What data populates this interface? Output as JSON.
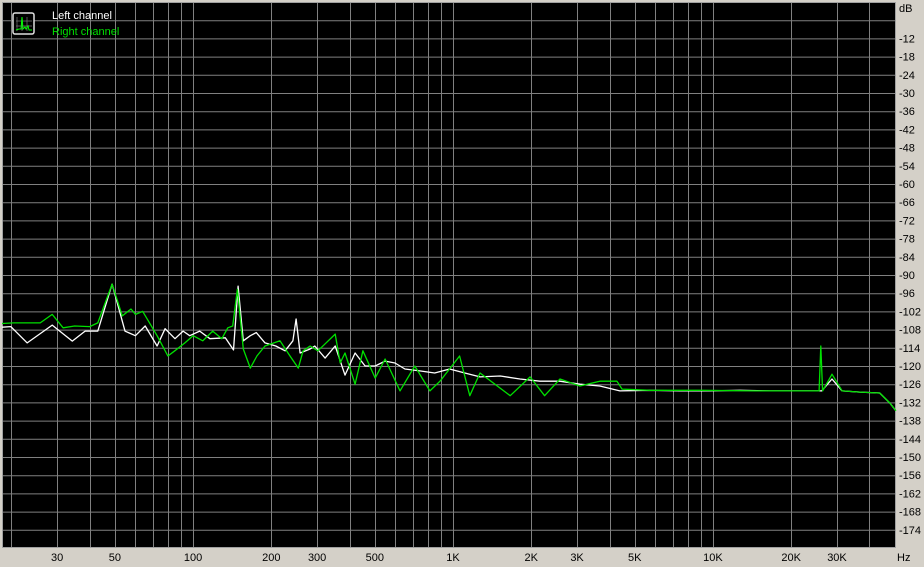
{
  "chart_data": {
    "type": "line",
    "title": "",
    "xlabel": "Hz",
    "ylabel": "dB",
    "xscale": "log",
    "xlim": [
      18.4,
      50600
    ],
    "ylim": [
      -180,
      0
    ],
    "grid": true,
    "legend_position": "top-left",
    "background": "#000000",
    "grid_color": "#808080",
    "x_ticks": [
      {
        "value": 30,
        "label": "30"
      },
      {
        "value": 50,
        "label": "50"
      },
      {
        "value": 100,
        "label": "100"
      },
      {
        "value": 200,
        "label": "200"
      },
      {
        "value": 300,
        "label": "300"
      },
      {
        "value": 500,
        "label": "500"
      },
      {
        "value": 1000,
        "label": "1K"
      },
      {
        "value": 2000,
        "label": "2K"
      },
      {
        "value": 3000,
        "label": "3K"
      },
      {
        "value": 5000,
        "label": "5K"
      },
      {
        "value": 10000,
        "label": "10K"
      },
      {
        "value": 20000,
        "label": "20K"
      },
      {
        "value": 30000,
        "label": "30K"
      }
    ],
    "y_ticks": [
      -12,
      -18,
      -24,
      -30,
      -36,
      -42,
      -48,
      -54,
      -60,
      -66,
      -72,
      -78,
      -84,
      -90,
      -96,
      -102,
      -108,
      -114,
      -120,
      -126,
      -132,
      -138,
      -144,
      -150,
      -156,
      -162,
      -168,
      -174
    ],
    "series": [
      {
        "name": "Left channel",
        "color": "#ffffff",
        "points": [
          [
            18.4,
            -107.2
          ],
          [
            19.9,
            -107
          ],
          [
            23,
            -112.4
          ],
          [
            28.7,
            -106.5
          ],
          [
            34.3,
            -111.8
          ],
          [
            38.4,
            -108.5
          ],
          [
            43,
            -108.5
          ],
          [
            48.8,
            -93
          ],
          [
            54.7,
            -108.5
          ],
          [
            60,
            -110
          ],
          [
            65.4,
            -106.8
          ],
          [
            72.7,
            -113.4
          ],
          [
            78,
            -107.7
          ],
          [
            85.2,
            -111
          ],
          [
            91.5,
            -108.5
          ],
          [
            97,
            -110
          ],
          [
            106,
            -108.5
          ],
          [
            116,
            -111
          ],
          [
            133,
            -110.7
          ],
          [
            143,
            -114.7
          ],
          [
            149,
            -93.7
          ],
          [
            156,
            -111.7
          ],
          [
            166,
            -110
          ],
          [
            175,
            -109
          ],
          [
            189,
            -112.4
          ],
          [
            208,
            -113.4
          ],
          [
            226,
            -115
          ],
          [
            242,
            -111.7
          ],
          [
            249,
            -104.5
          ],
          [
            258,
            -115.7
          ],
          [
            282,
            -114.4
          ],
          [
            294,
            -113.4
          ],
          [
            322,
            -117.4
          ],
          [
            352,
            -113.4
          ],
          [
            384,
            -123
          ],
          [
            420,
            -115.7
          ],
          [
            459,
            -120
          ],
          [
            502,
            -120
          ],
          [
            548,
            -118.4
          ],
          [
            598,
            -119
          ],
          [
            653,
            -121
          ],
          [
            744,
            -121.6
          ],
          [
            850,
            -122.3
          ],
          [
            970,
            -121
          ],
          [
            1110,
            -122.3
          ],
          [
            1270,
            -123.6
          ],
          [
            1520,
            -123.3
          ],
          [
            1810,
            -124.3
          ],
          [
            2160,
            -125
          ],
          [
            2580,
            -125
          ],
          [
            3080,
            -126
          ],
          [
            3670,
            -126.6
          ],
          [
            4380,
            -128.2
          ],
          [
            5700,
            -128
          ],
          [
            7460,
            -128.2
          ],
          [
            9760,
            -128.2
          ],
          [
            12700,
            -128
          ],
          [
            16600,
            -128.2
          ],
          [
            21700,
            -128.2
          ],
          [
            26200,
            -128.2
          ],
          [
            28700,
            -124.3
          ],
          [
            31400,
            -128.2
          ],
          [
            36800,
            -128.6
          ],
          [
            43800,
            -128.9
          ],
          [
            47900,
            -132.2
          ],
          [
            50600,
            -134.8
          ]
        ]
      },
      {
        "name": "Right channel",
        "color": "#00e000",
        "points": [
          [
            18.4,
            -106
          ],
          [
            20.4,
            -105.8
          ],
          [
            25.8,
            -105.8
          ],
          [
            28.7,
            -103
          ],
          [
            31.6,
            -107.4
          ],
          [
            35,
            -106.8
          ],
          [
            40,
            -107
          ],
          [
            43,
            -105.8
          ],
          [
            48.8,
            -93
          ],
          [
            53.4,
            -103.5
          ],
          [
            57.7,
            -101.2
          ],
          [
            60,
            -103
          ],
          [
            64,
            -102
          ],
          [
            72.7,
            -110
          ],
          [
            80,
            -116.7
          ],
          [
            85,
            -115
          ],
          [
            93,
            -112.4
          ],
          [
            100,
            -110
          ],
          [
            109,
            -111.7
          ],
          [
            119,
            -108.5
          ],
          [
            129,
            -111
          ],
          [
            136,
            -107.4
          ],
          [
            142,
            -106.8
          ],
          [
            148,
            -94.7
          ],
          [
            156,
            -114.4
          ],
          [
            166,
            -120.7
          ],
          [
            176,
            -116.7
          ],
          [
            189,
            -113.4
          ],
          [
            216,
            -111.7
          ],
          [
            236,
            -116.7
          ],
          [
            254,
            -120.7
          ],
          [
            265,
            -115
          ],
          [
            282,
            -113.4
          ],
          [
            302,
            -115
          ],
          [
            352,
            -109.5
          ],
          [
            368,
            -119
          ],
          [
            384,
            -115.7
          ],
          [
            420,
            -126
          ],
          [
            450,
            -115
          ],
          [
            502,
            -124
          ],
          [
            548,
            -117.7
          ],
          [
            625,
            -128.2
          ],
          [
            713,
            -120
          ],
          [
            815,
            -128.2
          ],
          [
            893,
            -124.9
          ],
          [
            1060,
            -116.7
          ],
          [
            1160,
            -129.8
          ],
          [
            1270,
            -122.3
          ],
          [
            1660,
            -129.8
          ],
          [
            1980,
            -123.6
          ],
          [
            2250,
            -129.8
          ],
          [
            2580,
            -124.3
          ],
          [
            3080,
            -126.6
          ],
          [
            3670,
            -125
          ],
          [
            4270,
            -125
          ],
          [
            4470,
            -127.6
          ],
          [
            5700,
            -128
          ],
          [
            9000,
            -128
          ],
          [
            14500,
            -128.2
          ],
          [
            21000,
            -128.2
          ],
          [
            25600,
            -128.2
          ],
          [
            26000,
            -113.4
          ],
          [
            26400,
            -128.2
          ],
          [
            28700,
            -122.7
          ],
          [
            31400,
            -128.2
          ],
          [
            36800,
            -128.6
          ],
          [
            43800,
            -128.9
          ],
          [
            47900,
            -132.2
          ],
          [
            50600,
            -134.8
          ]
        ]
      }
    ]
  }
}
